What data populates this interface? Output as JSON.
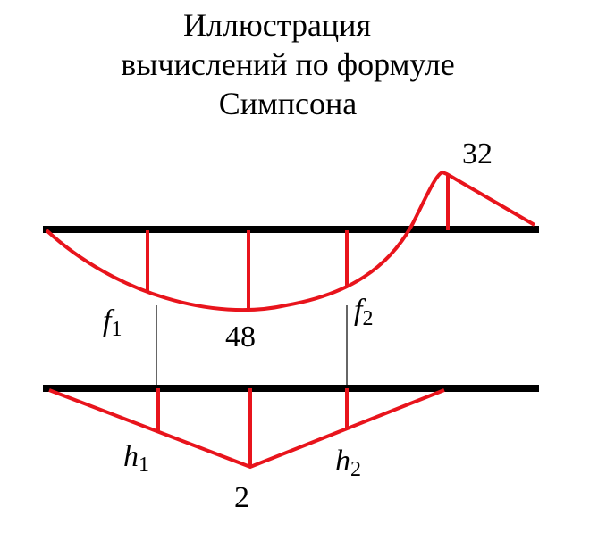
{
  "title": [
    "Иллюстрация",
    "вычислений  по формуле",
    "Симпсона"
  ],
  "upper_diagram": {
    "peak_value": "32",
    "middle_value": "48",
    "f1": {
      "symbol": "f",
      "subscript": "1"
    },
    "f2": {
      "symbol": "f",
      "subscript": "2"
    }
  },
  "lower_diagram": {
    "middle_value": "2",
    "h1": {
      "symbol": "h",
      "subscript": "1"
    },
    "h2": {
      "symbol": "h",
      "subscript": "2"
    }
  }
}
